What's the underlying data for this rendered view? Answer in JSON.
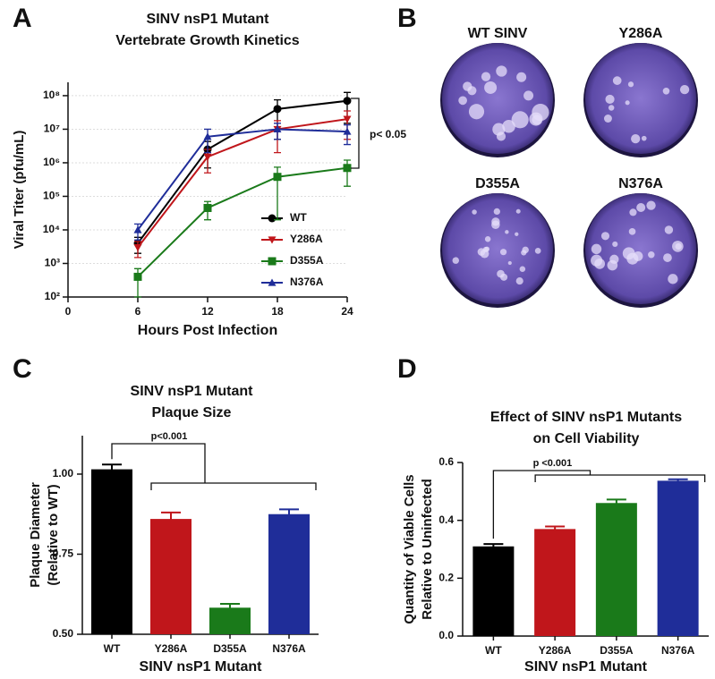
{
  "chart_data": [
    {
      "type": "line",
      "panel": "A",
      "title": [
        "SINV nsP1 Mutant",
        "Vertebrate Growth Kinetics"
      ],
      "xlabel": "Hours Post Infection",
      "ylabel": "Viral Titer (pfu/mL)",
      "x": [
        6,
        12,
        18,
        24
      ],
      "xlim": [
        0,
        24
      ],
      "xticks": [
        0,
        6,
        12,
        18,
        24
      ],
      "log_y": true,
      "ylim": [
        100,
        250000000
      ],
      "yticks": [
        {
          "value": 100,
          "label": "10²"
        },
        {
          "value": 1000,
          "label": "10³"
        },
        {
          "value": 10000,
          "label": "10⁴"
        },
        {
          "value": 100000,
          "label": "10⁵"
        },
        {
          "value": 1000000,
          "label": "10⁶"
        },
        {
          "value": 10000000,
          "label": "10⁷"
        },
        {
          "value": 100000000,
          "label": "10⁸"
        }
      ],
      "grid": true,
      "legend": "lower right",
      "series": [
        {
          "name": "WT",
          "color": "#000000",
          "marker": "circle",
          "values": [
            4000,
            2500000,
            40000000,
            70000000
          ],
          "errors": [
            2000,
            1800000,
            35000000,
            55000000
          ]
        },
        {
          "name": "Y286A",
          "color": "#c0161b",
          "marker": "triangle-down",
          "values": [
            3000,
            1500000,
            10000000,
            20000000
          ],
          "errors": [
            1500,
            1000000,
            8000000,
            15000000
          ]
        },
        {
          "name": "D355A",
          "color": "#1a7a1a",
          "marker": "square",
          "values": [
            400,
            45000,
            380000,
            700000
          ],
          "errors": [
            300,
            25000,
            360000,
            500000
          ]
        },
        {
          "name": "N376A",
          "color": "#1f2d99",
          "marker": "triangle-up",
          "values": [
            10000,
            6000000,
            10000000,
            8500000
          ],
          "errors": [
            5000,
            4000000,
            5000000,
            5000000
          ]
        }
      ],
      "annotation": "p< 0.05"
    },
    {
      "type": "images",
      "panel": "B",
      "labels": [
        "WT SINV",
        "Y286A",
        "D355A",
        "N376A"
      ]
    },
    {
      "type": "bar",
      "panel": "C",
      "title": [
        "SINV nsP1 Mutant",
        "Plaque Size"
      ],
      "xlabel": "SINV nsP1 Mutant",
      "ylabel": [
        "Plaque Diameter",
        "(Relative to WT)"
      ],
      "categories": [
        "WT",
        "Y286A",
        "D355A",
        "N376A"
      ],
      "colors": [
        "#000000",
        "#c0161b",
        "#1a7a1a",
        "#1f2d99"
      ],
      "values": [
        1.015,
        0.86,
        0.583,
        0.875
      ],
      "errors": [
        0.015,
        0.02,
        0.012,
        0.015
      ],
      "ylim": [
        0.5,
        1.12
      ],
      "yticks": [
        {
          "value": 0.5,
          "label": "0.50"
        },
        0.75,
        {
          "value": 1.0,
          "label": "1.00"
        }
      ],
      "annotation": "p<0.001"
    },
    {
      "type": "bar",
      "panel": "D",
      "title": [
        "Effect of SINV nsP1 Mutants",
        "on Cell Viability"
      ],
      "xlabel": "SINV nsP1 Mutant",
      "ylabel": [
        "Quantity of Viable Cells",
        "Relative to Uninfected"
      ],
      "categories": [
        "WT",
        "Y286A",
        "D355A",
        "N376A"
      ],
      "colors": [
        "#000000",
        "#c0161b",
        "#1a7a1a",
        "#1f2d99"
      ],
      "values": [
        0.31,
        0.37,
        0.46,
        0.537
      ],
      "errors": [
        0.008,
        0.009,
        0.012,
        0.005
      ],
      "ylim": [
        0,
        0.6
      ],
      "yticks": [
        {
          "value": 0,
          "label": "0.0"
        },
        0.2,
        0.4,
        0.6
      ],
      "annotation": "p <0.001"
    }
  ]
}
